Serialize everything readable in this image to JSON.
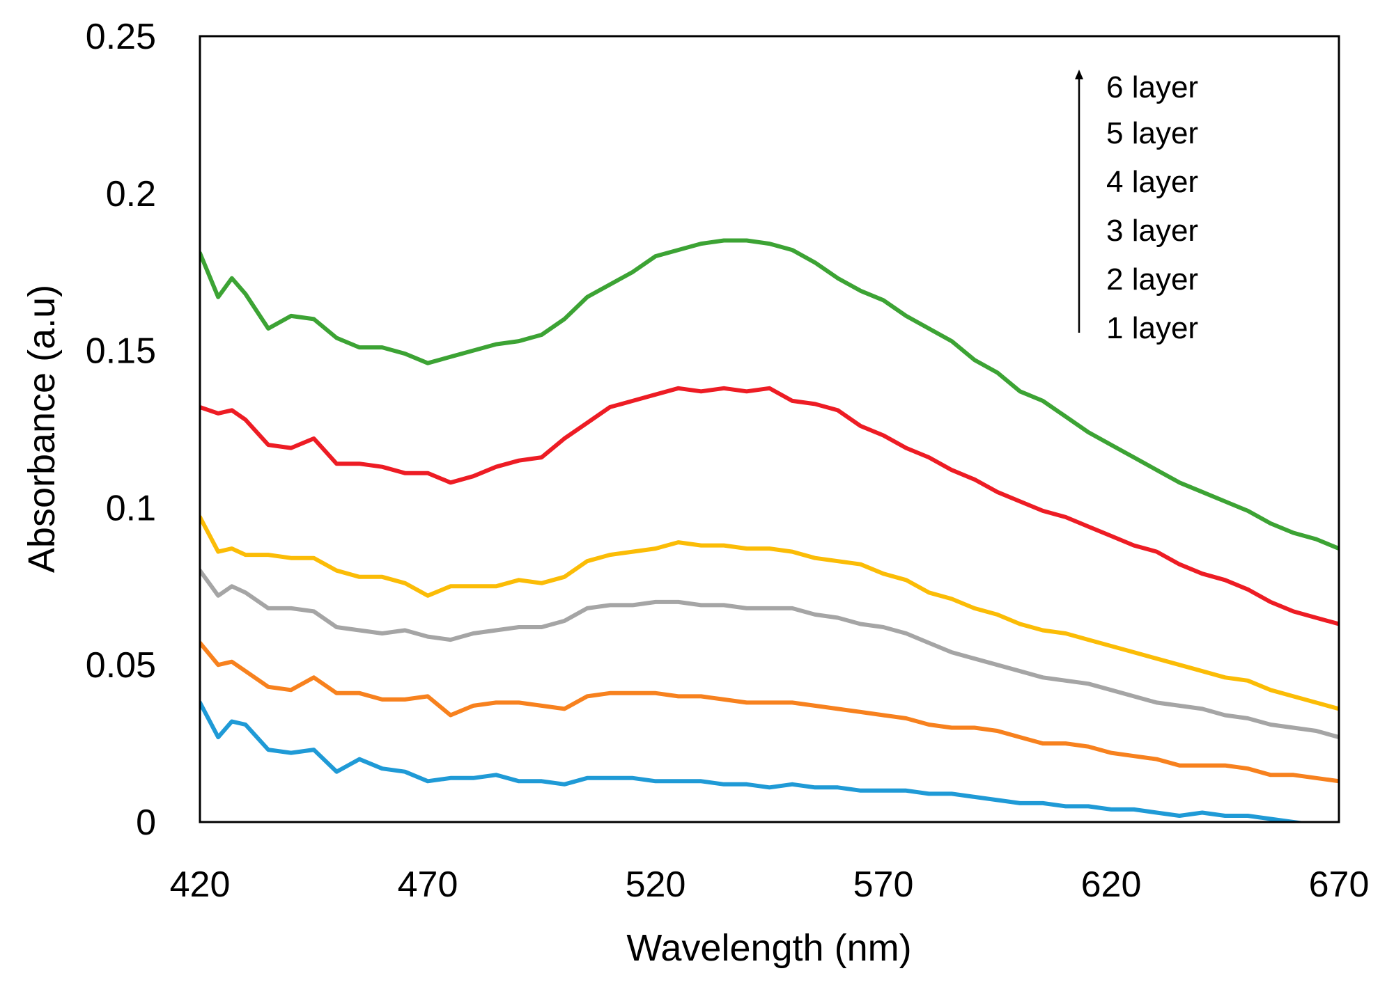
{
  "chart_data": {
    "type": "line",
    "title": "",
    "xlabel": "Wavelength (nm)",
    "ylabel": "Absorbance (a.u)",
    "xlim": [
      420,
      670
    ],
    "ylim": [
      0,
      0.25
    ],
    "xticks": [
      "420",
      "470",
      "520",
      "570",
      "620",
      "670"
    ],
    "yticks": [
      "0",
      "0.05",
      "0.1",
      "0.15",
      "0.2",
      "0.25"
    ],
    "grid": false,
    "legend_position": "top-right",
    "legend_entries": [
      "6 layer",
      "5 layer",
      "4 layer",
      "3 layer",
      "2 layer",
      "1 layer"
    ],
    "series": [
      {
        "name": "1 layer",
        "color": "#1f9ad6",
        "x": [
          420,
          424,
          427,
          430,
          435,
          440,
          445,
          450,
          455,
          460,
          465,
          470,
          475,
          480,
          485,
          490,
          495,
          500,
          505,
          510,
          515,
          520,
          525,
          530,
          535,
          540,
          545,
          550,
          555,
          560,
          565,
          570,
          575,
          580,
          585,
          590,
          595,
          600,
          605,
          610,
          615,
          620,
          625,
          630,
          635,
          640,
          645,
          650,
          655,
          660,
          665,
          670
        ],
        "values": [
          0.038,
          0.027,
          0.032,
          0.031,
          0.023,
          0.022,
          0.023,
          0.016,
          0.02,
          0.017,
          0.016,
          0.013,
          0.014,
          0.014,
          0.015,
          0.013,
          0.013,
          0.012,
          0.014,
          0.014,
          0.014,
          0.013,
          0.013,
          0.013,
          0.012,
          0.012,
          0.011,
          0.012,
          0.011,
          0.011,
          0.01,
          0.01,
          0.01,
          0.009,
          0.009,
          0.008,
          0.007,
          0.006,
          0.006,
          0.005,
          0.005,
          0.004,
          0.004,
          0.003,
          0.002,
          0.003,
          0.002,
          0.002,
          0.001,
          0.0,
          -0.001,
          -0.001
        ]
      },
      {
        "name": "2 layer",
        "color": "#f7811e",
        "x": [
          420,
          424,
          427,
          430,
          435,
          440,
          445,
          450,
          455,
          460,
          465,
          470,
          475,
          480,
          485,
          490,
          495,
          500,
          505,
          510,
          515,
          520,
          525,
          530,
          535,
          540,
          545,
          550,
          555,
          560,
          565,
          570,
          575,
          580,
          585,
          590,
          595,
          600,
          605,
          610,
          615,
          620,
          625,
          630,
          635,
          640,
          645,
          650,
          655,
          660,
          665,
          670
        ],
        "values": [
          0.057,
          0.05,
          0.051,
          0.048,
          0.043,
          0.042,
          0.046,
          0.041,
          0.041,
          0.039,
          0.039,
          0.04,
          0.034,
          0.037,
          0.038,
          0.038,
          0.037,
          0.036,
          0.04,
          0.041,
          0.041,
          0.041,
          0.04,
          0.04,
          0.039,
          0.038,
          0.038,
          0.038,
          0.037,
          0.036,
          0.035,
          0.034,
          0.033,
          0.031,
          0.03,
          0.03,
          0.029,
          0.027,
          0.025,
          0.025,
          0.024,
          0.022,
          0.021,
          0.02,
          0.018,
          0.018,
          0.018,
          0.017,
          0.015,
          0.015,
          0.014,
          0.013
        ]
      },
      {
        "name": "3 layer",
        "color": "#a5a5a5",
        "x": [
          420,
          424,
          427,
          430,
          435,
          440,
          445,
          450,
          455,
          460,
          465,
          470,
          475,
          480,
          485,
          490,
          495,
          500,
          505,
          510,
          515,
          520,
          525,
          530,
          535,
          540,
          545,
          550,
          555,
          560,
          565,
          570,
          575,
          580,
          585,
          590,
          595,
          600,
          605,
          610,
          615,
          620,
          625,
          630,
          635,
          640,
          645,
          650,
          655,
          660,
          665,
          670
        ],
        "values": [
          0.08,
          0.072,
          0.075,
          0.073,
          0.068,
          0.068,
          0.067,
          0.062,
          0.061,
          0.06,
          0.061,
          0.059,
          0.058,
          0.06,
          0.061,
          0.062,
          0.062,
          0.064,
          0.068,
          0.069,
          0.069,
          0.07,
          0.07,
          0.069,
          0.069,
          0.068,
          0.068,
          0.068,
          0.066,
          0.065,
          0.063,
          0.062,
          0.06,
          0.057,
          0.054,
          0.052,
          0.05,
          0.048,
          0.046,
          0.045,
          0.044,
          0.042,
          0.04,
          0.038,
          0.037,
          0.036,
          0.034,
          0.033,
          0.031,
          0.03,
          0.029,
          0.027
        ]
      },
      {
        "name": "4 layer",
        "color": "#fbbc06",
        "x": [
          420,
          424,
          427,
          430,
          435,
          440,
          445,
          450,
          455,
          460,
          465,
          470,
          475,
          480,
          485,
          490,
          495,
          500,
          505,
          510,
          515,
          520,
          525,
          530,
          535,
          540,
          545,
          550,
          555,
          560,
          565,
          570,
          575,
          580,
          585,
          590,
          595,
          600,
          605,
          610,
          615,
          620,
          625,
          630,
          635,
          640,
          645,
          650,
          655,
          660,
          665,
          670
        ],
        "values": [
          0.097,
          0.086,
          0.087,
          0.085,
          0.085,
          0.084,
          0.084,
          0.08,
          0.078,
          0.078,
          0.076,
          0.072,
          0.075,
          0.075,
          0.075,
          0.077,
          0.076,
          0.078,
          0.083,
          0.085,
          0.086,
          0.087,
          0.089,
          0.088,
          0.088,
          0.087,
          0.087,
          0.086,
          0.084,
          0.083,
          0.082,
          0.079,
          0.077,
          0.073,
          0.071,
          0.068,
          0.066,
          0.063,
          0.061,
          0.06,
          0.058,
          0.056,
          0.054,
          0.052,
          0.05,
          0.048,
          0.046,
          0.045,
          0.042,
          0.04,
          0.038,
          0.036
        ]
      },
      {
        "name": "5 layer",
        "color": "#ed1c24",
        "x": [
          420,
          424,
          427,
          430,
          435,
          440,
          445,
          450,
          455,
          460,
          465,
          470,
          475,
          480,
          485,
          490,
          495,
          500,
          505,
          510,
          515,
          520,
          525,
          530,
          535,
          540,
          545,
          550,
          555,
          560,
          565,
          570,
          575,
          580,
          585,
          590,
          595,
          600,
          605,
          610,
          615,
          620,
          625,
          630,
          635,
          640,
          645,
          650,
          655,
          660,
          665,
          670
        ],
        "values": [
          0.132,
          0.13,
          0.131,
          0.128,
          0.12,
          0.119,
          0.122,
          0.114,
          0.114,
          0.113,
          0.111,
          0.111,
          0.108,
          0.11,
          0.113,
          0.115,
          0.116,
          0.122,
          0.127,
          0.132,
          0.134,
          0.136,
          0.138,
          0.137,
          0.138,
          0.137,
          0.138,
          0.134,
          0.133,
          0.131,
          0.126,
          0.123,
          0.119,
          0.116,
          0.112,
          0.109,
          0.105,
          0.102,
          0.099,
          0.097,
          0.094,
          0.091,
          0.088,
          0.086,
          0.082,
          0.079,
          0.077,
          0.074,
          0.07,
          0.067,
          0.065,
          0.063
        ]
      },
      {
        "name": "6 layer",
        "color": "#3ca334",
        "x": [
          420,
          424,
          427,
          430,
          435,
          440,
          445,
          450,
          455,
          460,
          465,
          470,
          475,
          480,
          485,
          490,
          495,
          500,
          505,
          510,
          515,
          520,
          525,
          530,
          535,
          540,
          545,
          550,
          555,
          560,
          565,
          570,
          575,
          580,
          585,
          590,
          595,
          600,
          605,
          610,
          615,
          620,
          625,
          630,
          635,
          640,
          645,
          650,
          655,
          660,
          665,
          670
        ],
        "values": [
          0.181,
          0.167,
          0.173,
          0.168,
          0.157,
          0.161,
          0.16,
          0.154,
          0.151,
          0.151,
          0.149,
          0.146,
          0.148,
          0.15,
          0.152,
          0.153,
          0.155,
          0.16,
          0.167,
          0.171,
          0.175,
          0.18,
          0.182,
          0.184,
          0.185,
          0.185,
          0.184,
          0.182,
          0.178,
          0.173,
          0.169,
          0.166,
          0.161,
          0.157,
          0.153,
          0.147,
          0.143,
          0.137,
          0.134,
          0.129,
          0.124,
          0.12,
          0.116,
          0.112,
          0.108,
          0.105,
          0.102,
          0.099,
          0.095,
          0.092,
          0.09,
          0.087
        ]
      }
    ]
  }
}
